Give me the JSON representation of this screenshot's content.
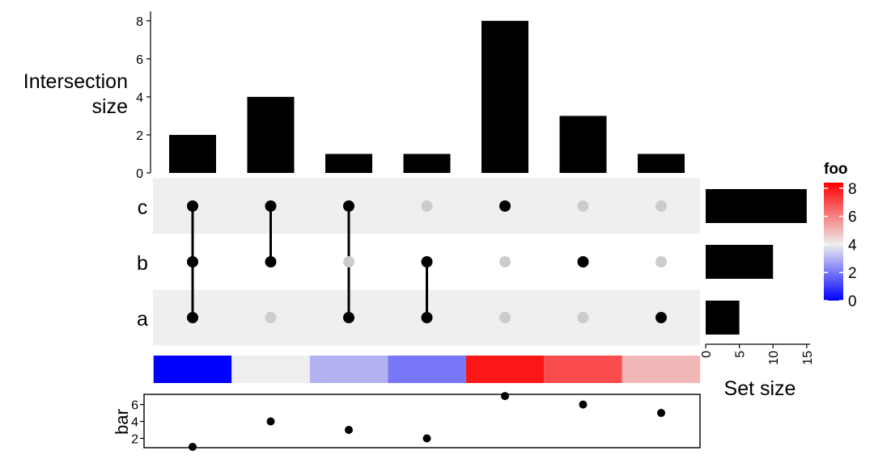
{
  "chart_data": {
    "type": "upset",
    "intersection_size": {
      "ylabel_line1": "Intersection",
      "ylabel_line2": "size",
      "ylim": [
        0,
        8.5
      ],
      "ticks": [
        0,
        2,
        4,
        6,
        8
      ],
      "values": [
        2,
        4,
        1,
        1,
        8,
        3,
        1
      ]
    },
    "sets": [
      "c",
      "b",
      "a"
    ],
    "matrix": [
      [
        1,
        1,
        1
      ],
      [
        1,
        1,
        0
      ],
      [
        1,
        0,
        1
      ],
      [
        0,
        1,
        1
      ],
      [
        1,
        0,
        0
      ],
      [
        0,
        1,
        0
      ],
      [
        0,
        0,
        1
      ]
    ],
    "set_size": {
      "xlabel": "Set size",
      "values": [
        15,
        10,
        5
      ],
      "xlim": [
        0,
        15.5
      ],
      "ticks": [
        0,
        5,
        10,
        15
      ]
    },
    "foo": {
      "legend_title": "foo",
      "values": [
        0,
        4,
        3,
        2,
        8,
        7,
        5
      ],
      "legend_ticks": [
        0,
        2,
        4,
        6,
        8
      ],
      "range": [
        0,
        8.4
      ],
      "color_low": "#0000ff",
      "color_mid": "#eeeeee",
      "color_high": "#ff0000"
    },
    "bar": {
      "ylabel": "bar",
      "values": [
        1,
        4,
        3,
        2,
        7,
        6,
        5
      ],
      "ylim": [
        0.9,
        7.2
      ],
      "ticks": [
        2,
        4,
        6
      ]
    },
    "colors": {
      "bar_fill": "#000000",
      "dot_active": "#000000",
      "dot_inactive": "#cccccc",
      "row_shade": "#efefef"
    }
  }
}
